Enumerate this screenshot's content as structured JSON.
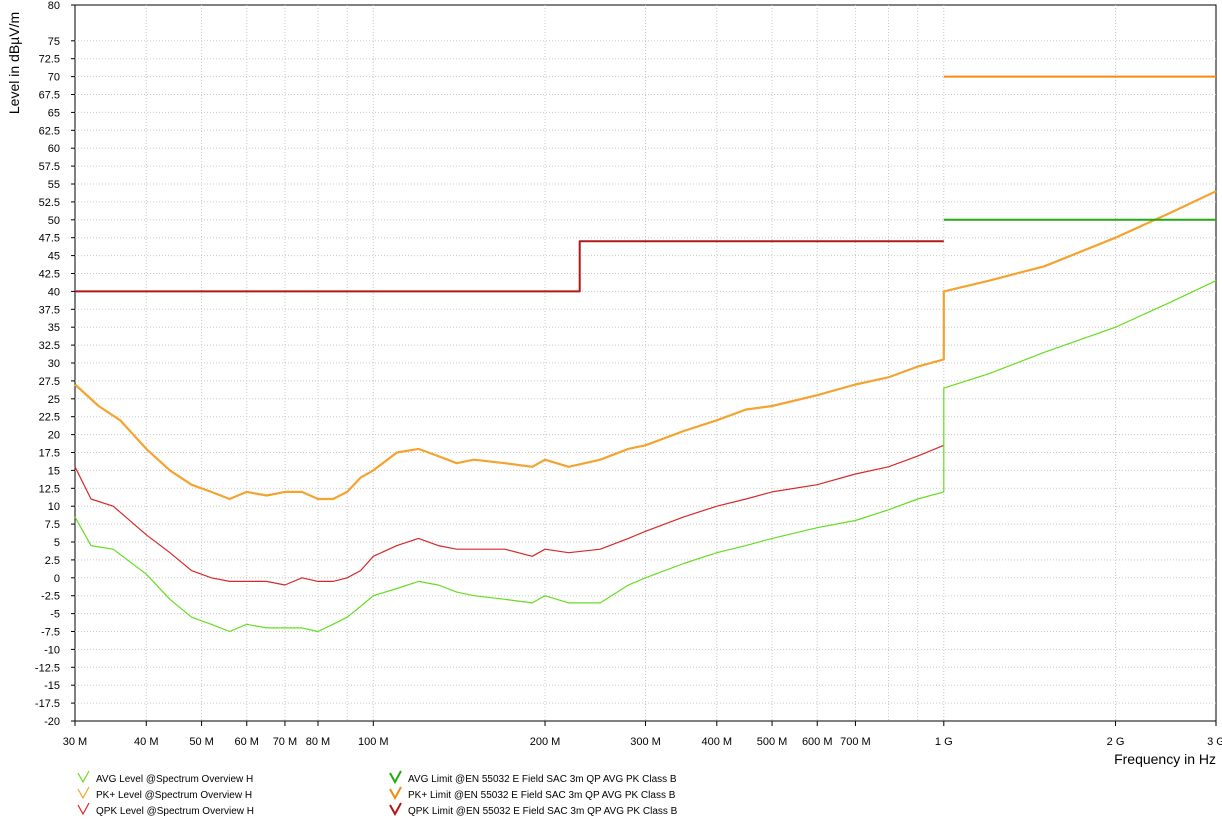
{
  "chart_data": {
    "type": "line",
    "xlabel": "Frequency in Hz",
    "ylabel": "Level in dBµV/m",
    "x_scale": "log",
    "xlim": [
      30000000,
      3000000000
    ],
    "ylim": [
      -20,
      80
    ],
    "grid": true,
    "x_ticks": [
      {
        "value": 30000000,
        "label": "30 M"
      },
      {
        "value": 40000000,
        "label": "40 M"
      },
      {
        "value": 50000000,
        "label": "50 M"
      },
      {
        "value": 60000000,
        "label": "60 M"
      },
      {
        "value": 70000000,
        "label": "70 M"
      },
      {
        "value": 80000000,
        "label": "80 M"
      },
      {
        "value": 100000000,
        "label": "100 M"
      },
      {
        "value": 200000000,
        "label": "200 M"
      },
      {
        "value": 300000000,
        "label": "300 M"
      },
      {
        "value": 400000000,
        "label": "400 M"
      },
      {
        "value": 500000000,
        "label": "500 M"
      },
      {
        "value": 600000000,
        "label": "600 M"
      },
      {
        "value": 700000000,
        "label": "700 M"
      },
      {
        "value": 1000000000,
        "label": "1 G"
      },
      {
        "value": 2000000000,
        "label": "2 G"
      },
      {
        "value": 3000000000,
        "label": "3 G"
      }
    ],
    "y_ticks": [
      80,
      75,
      72.5,
      70,
      67.5,
      65,
      62.5,
      60,
      57.5,
      55,
      52.5,
      50,
      47.5,
      45,
      42.5,
      40,
      37.5,
      35,
      32.5,
      30,
      27.5,
      25,
      22.5,
      20,
      17.5,
      15,
      12.5,
      10,
      7.5,
      5,
      2.5,
      0,
      -2.5,
      -5,
      -7.5,
      -10,
      -12.5,
      -15,
      -17.5,
      -20
    ],
    "series": [
      {
        "name": "PK+ Level @Spectrum Overview H",
        "color": "#f5a330",
        "kind": "level",
        "x": [
          30000000,
          33000000,
          36000000,
          40000000,
          44000000,
          48000000,
          52000000,
          56000000,
          60000000,
          65000000,
          70000000,
          75000000,
          80000000,
          85000000,
          90000000,
          95000000,
          100000000,
          110000000,
          120000000,
          130000000,
          140000000,
          150000000,
          170000000,
          190000000,
          200000000,
          220000000,
          250000000,
          280000000,
          300000000,
          350000000,
          400000000,
          450000000,
          500000000,
          600000000,
          700000000,
          800000000,
          900000000,
          1000000000,
          1000000001,
          1200000000,
          1500000000,
          2000000000,
          2500000000,
          3000000000
        ],
        "y": [
          27,
          24,
          22,
          18,
          15,
          13,
          12,
          11,
          12,
          11.5,
          12,
          12,
          11,
          11,
          12,
          14,
          15,
          17.5,
          18,
          17,
          16,
          16.5,
          16,
          15.5,
          16.5,
          15.5,
          16.5,
          18,
          18.5,
          20.5,
          22,
          23.5,
          24,
          25.5,
          27,
          28,
          29.5,
          30.5,
          40,
          41.5,
          43.5,
          47.5,
          51,
          54
        ]
      },
      {
        "name": "QPK Level @Spectrum Overview H",
        "color": "#d82828",
        "kind": "level",
        "x": [
          30000000,
          32000000,
          35000000,
          40000000,
          44000000,
          48000000,
          52000000,
          56000000,
          60000000,
          65000000,
          70000000,
          75000000,
          80000000,
          85000000,
          90000000,
          95000000,
          100000000,
          110000000,
          120000000,
          130000000,
          140000000,
          150000000,
          170000000,
          190000000,
          200000000,
          220000000,
          250000000,
          280000000,
          300000000,
          350000000,
          400000000,
          450000000,
          500000000,
          600000000,
          700000000,
          800000000,
          900000000,
          1000000000
        ],
        "y": [
          15.5,
          11,
          10,
          6,
          3.5,
          1,
          0,
          -0.5,
          -0.5,
          -0.5,
          -1,
          0,
          -0.5,
          -0.5,
          0,
          1,
          3,
          4.5,
          5.5,
          4.5,
          4,
          4,
          4,
          3,
          4,
          3.5,
          4,
          5.5,
          6.5,
          8.5,
          10,
          11,
          12,
          13,
          14.5,
          15.5,
          17,
          18.5
        ]
      },
      {
        "name": "AVG Level @Spectrum Overview H",
        "color": "#66dd22",
        "kind": "level",
        "x": [
          30000000,
          32000000,
          35000000,
          40000000,
          44000000,
          48000000,
          52000000,
          56000000,
          60000000,
          65000000,
          70000000,
          75000000,
          80000000,
          85000000,
          90000000,
          95000000,
          100000000,
          110000000,
          120000000,
          130000000,
          140000000,
          150000000,
          170000000,
          190000000,
          200000000,
          220000000,
          250000000,
          280000000,
          300000000,
          350000000,
          400000000,
          450000000,
          500000000,
          600000000,
          700000000,
          800000000,
          900000000,
          1000000000,
          1000000001,
          1200000000,
          1500000000,
          2000000000,
          2500000000,
          3000000000
        ],
        "y": [
          8.5,
          4.5,
          4,
          0.5,
          -3,
          -5.5,
          -6.5,
          -7.5,
          -6.5,
          -7,
          -7,
          -7,
          -7.5,
          -6.5,
          -5.5,
          -4,
          -2.5,
          -1.5,
          -0.5,
          -1,
          -2,
          -2.5,
          -3,
          -3.5,
          -2.5,
          -3.5,
          -3.5,
          -1,
          0,
          2,
          3.5,
          4.5,
          5.5,
          7,
          8,
          9.5,
          11,
          12,
          26.5,
          28.5,
          31.5,
          35,
          38.5,
          41.5
        ]
      },
      {
        "name": "QPK Limit @EN 55032 E Field SAC 3m QP AVG PK Class B",
        "color": "#b21818",
        "kind": "limit",
        "x": [
          30000000,
          230000000,
          230000001,
          1000000000
        ],
        "y": [
          40,
          40,
          47,
          47
        ]
      },
      {
        "name": "PK+ Limit @EN 55032 E Field SAC 3m QP AVG PK Class B",
        "color": "#f08c10",
        "kind": "limit",
        "x": [
          1000000000,
          3000000000
        ],
        "y": [
          70,
          70
        ]
      },
      {
        "name": "AVG Limit @EN 55032 E Field SAC 3m QP AVG PK Class B",
        "color": "#22aa10",
        "kind": "limit",
        "x": [
          1000000000,
          3000000000
        ],
        "y": [
          50,
          50
        ]
      }
    ],
    "legend": [
      {
        "label": "AVG Level @Spectrum Overview H",
        "color": "#66dd22",
        "column": 0
      },
      {
        "label": "PK+ Level @Spectrum Overview H",
        "color": "#f5a330",
        "column": 0
      },
      {
        "label": "QPK Level @Spectrum Overview H",
        "color": "#d82828",
        "column": 0
      },
      {
        "label": "AVG Limit @EN 55032 E Field SAC 3m QP AVG PK Class B",
        "color": "#22aa10",
        "column": 1
      },
      {
        "label": "PK+ Limit @EN 55032 E Field SAC 3m QP AVG PK Class B",
        "color": "#f08c10",
        "column": 1
      },
      {
        "label": "QPK Limit @EN 55032 E Field SAC 3m QP AVG PK Class B",
        "color": "#b21818",
        "column": 1
      }
    ],
    "legend_position": "bottom"
  }
}
